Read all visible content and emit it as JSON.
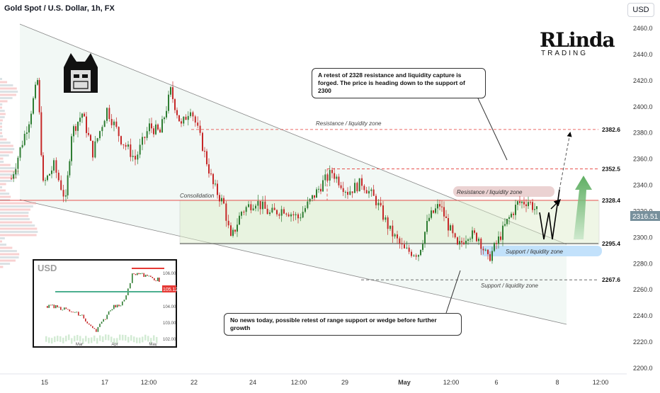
{
  "header": {
    "title": "Gold Spot / U.S. Dollar, 1h, FX",
    "currency_button": "USD"
  },
  "logo": {
    "brand": "RLinda",
    "sub": "TRADING"
  },
  "notes": {
    "top": "A retest of 2328 resistance and liquidity capture is forged. The price is heading down to the support of 2300",
    "bottom": "No news today, possible retest of range support or wedge before further growth"
  },
  "chart_data": {
    "type": "candlestick",
    "title": "Gold Spot / U.S. Dollar, 1h, FX",
    "y_axis": {
      "range": [
        2196,
        2470
      ],
      "ticks": [
        2200,
        2220,
        2240,
        2260,
        2280,
        2300,
        2320,
        2340,
        2360,
        2380,
        2400,
        2420,
        2440,
        2460
      ]
    },
    "x_axis": {
      "ticks": [
        "15",
        "17",
        "12:00",
        "22",
        "24",
        "12:00",
        "29",
        "May",
        "12:00",
        "6",
        "8",
        "12:00"
      ]
    },
    "current_price": "2316.51",
    "levels": [
      {
        "value": 2382.6,
        "label": "2382.6",
        "style": "dashed",
        "color": "#e53935"
      },
      {
        "value": 2352.5,
        "label": "2352.5",
        "style": "dashed",
        "color": "#e53935"
      },
      {
        "value": 2328.4,
        "label": "2328.4",
        "style": "solid",
        "color": "#e53935"
      },
      {
        "value": 2295.4,
        "label": "2295.4",
        "style": "solid",
        "color": "#555555"
      },
      {
        "value": 2267.6,
        "label": "2267.6",
        "style": "dashed",
        "color": "#555555"
      }
    ],
    "annotations": [
      "Resistance / liquidity zone",
      "Resistance / liquidity zone",
      "Support / liquidity zone",
      "Support / liquidity zone",
      "Consolidation"
    ],
    "price_path": [
      {
        "x": 15,
        "y": 2345
      },
      {
        "x": 40,
        "y": 2390
      },
      {
        "x": 52,
        "y": 2420
      },
      {
        "x": 60,
        "y": 2340
      },
      {
        "x": 75,
        "y": 2355
      },
      {
        "x": 92,
        "y": 2328
      },
      {
        "x": 100,
        "y": 2380
      },
      {
        "x": 115,
        "y": 2395
      },
      {
        "x": 130,
        "y": 2365
      },
      {
        "x": 150,
        "y": 2398
      },
      {
        "x": 170,
        "y": 2375
      },
      {
        "x": 190,
        "y": 2360
      },
      {
        "x": 210,
        "y": 2385
      },
      {
        "x": 225,
        "y": 2380
      },
      {
        "x": 240,
        "y": 2412
      },
      {
        "x": 255,
        "y": 2385
      },
      {
        "x": 268,
        "y": 2400
      },
      {
        "x": 285,
        "y": 2370
      },
      {
        "x": 300,
        "y": 2340
      },
      {
        "x": 315,
        "y": 2325
      },
      {
        "x": 325,
        "y": 2298
      },
      {
        "x": 340,
        "y": 2320
      },
      {
        "x": 360,
        "y": 2328
      },
      {
        "x": 380,
        "y": 2318
      },
      {
        "x": 400,
        "y": 2322
      },
      {
        "x": 420,
        "y": 2315
      },
      {
        "x": 440,
        "y": 2330
      },
      {
        "x": 455,
        "y": 2342
      },
      {
        "x": 468,
        "y": 2350
      },
      {
        "x": 490,
        "y": 2335
      },
      {
        "x": 510,
        "y": 2342
      },
      {
        "x": 530,
        "y": 2328
      },
      {
        "x": 550,
        "y": 2305
      },
      {
        "x": 570,
        "y": 2290
      },
      {
        "x": 590,
        "y": 2288
      },
      {
        "x": 605,
        "y": 2315
      },
      {
        "x": 620,
        "y": 2325
      },
      {
        "x": 635,
        "y": 2305
      },
      {
        "x": 645,
        "y": 2292
      },
      {
        "x": 660,
        "y": 2303
      },
      {
        "x": 675,
        "y": 2300
      },
      {
        "x": 688,
        "y": 2283
      },
      {
        "x": 700,
        "y": 2295
      },
      {
        "x": 715,
        "y": 2312
      },
      {
        "x": 730,
        "y": 2326
      },
      {
        "x": 745,
        "y": 2328
      },
      {
        "x": 760,
        "y": 2318
      }
    ]
  },
  "inset": {
    "title": "USD",
    "price_label": "105.12",
    "y_ticks": [
      "106.00",
      "104.00",
      "103.00",
      "102.00"
    ],
    "x_ticks": [
      "Mar",
      "Apr",
      "May"
    ]
  }
}
